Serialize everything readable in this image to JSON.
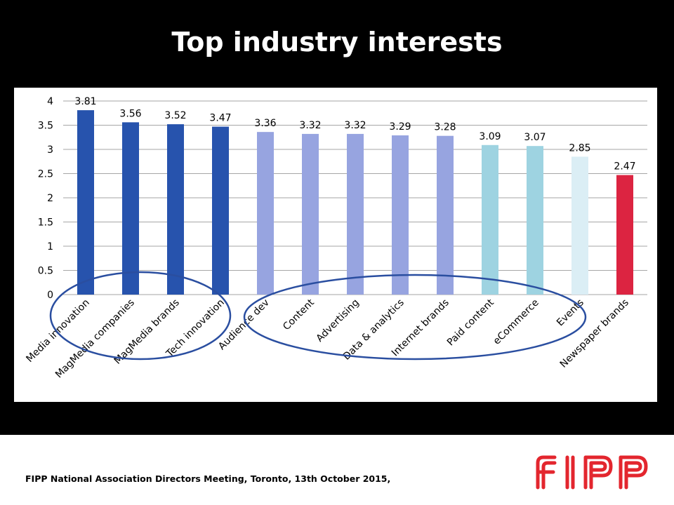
{
  "slide": {
    "title": "Top industry interests",
    "footer": "FIPP National Association Directors Meeting, Toronto, 13th October 2015,",
    "logo_text": "FIPP"
  },
  "colors": {
    "dark_blue": "#2753ad",
    "light_blue": "#97a4e0",
    "teal": "#9ed3e1",
    "pale_teal": "#dbeef5",
    "red": "#dc2441",
    "grid": "#a6a6a6",
    "annotation_ellipse": "#2a4ea0",
    "logo_red": "#e3262e"
  },
  "chart_data": {
    "type": "bar",
    "title": "",
    "xlabel": "",
    "ylabel": "",
    "ylim": [
      0,
      4
    ],
    "yticks": [
      "0",
      "0.5",
      "1",
      "1.5",
      "2",
      "2.5",
      "3",
      "3.5",
      "4"
    ],
    "grid": true,
    "categories": [
      "Media innovation",
      "MagMedia companies",
      "MagMedia brands",
      "Tech innovation",
      "Audience dev",
      "Content",
      "Advertising",
      "Data & analytics",
      "Internet brands",
      "Paid content",
      "eCommerce",
      "Events",
      "Newspaper brands"
    ],
    "values": [
      3.81,
      3.56,
      3.52,
      3.47,
      3.36,
      3.32,
      3.32,
      3.29,
      3.28,
      3.09,
      3.07,
      2.85,
      2.47
    ],
    "data_labels": [
      "3.81",
      "3.56",
      "3.52",
      "3.47",
      "3.36",
      "3.32",
      "3.32",
      "3.29",
      "3.28",
      "3.09",
      "3.07",
      "2.85",
      "2.47"
    ],
    "bar_colors": [
      "dark_blue",
      "dark_blue",
      "dark_blue",
      "dark_blue",
      "light_blue",
      "light_blue",
      "light_blue",
      "light_blue",
      "light_blue",
      "teal",
      "teal",
      "pale_teal",
      "red"
    ],
    "annotations": [
      "ellipse around first four categories",
      "ellipse around Audience dev through Events"
    ]
  }
}
